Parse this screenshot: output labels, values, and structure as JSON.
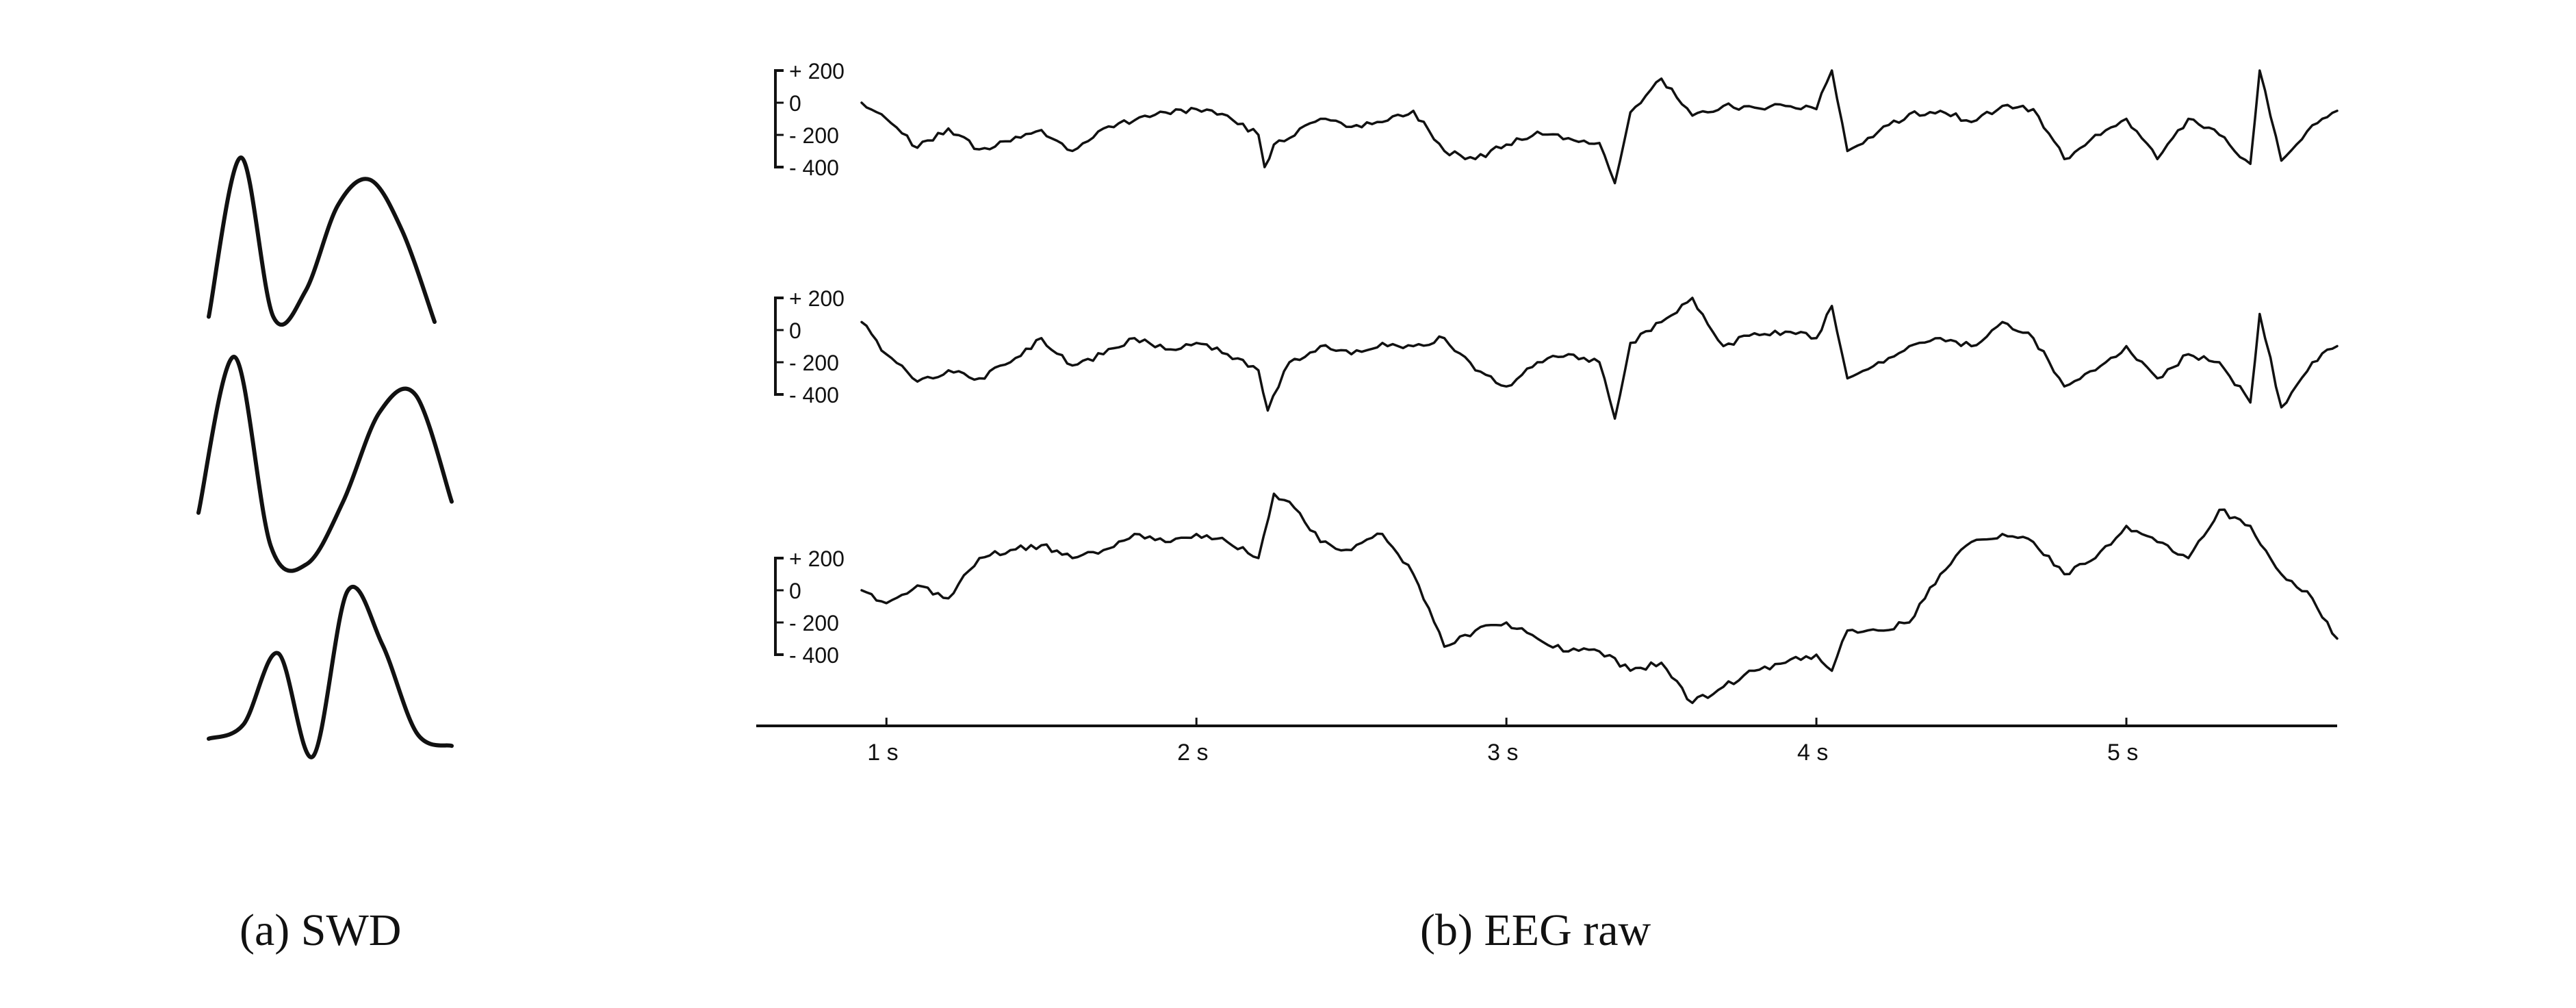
{
  "chart_data": [
    {
      "type": "line",
      "caption": "(a)  SWD",
      "series": [
        {
          "y": [
            0.05,
            0.98,
            0.05,
            0.2,
            0.7,
            0.85,
            0.55,
            0.02
          ]
        },
        {
          "y": [
            0.25,
            0.95,
            0.1,
            0.02,
            0.3,
            0.7,
            0.78,
            0.3
          ]
        },
        {
          "y": [
            0.12,
            0.2,
            0.6,
            0.02,
            0.95,
            0.65,
            0.15,
            0.08
          ]
        }
      ]
    },
    {
      "type": "line",
      "caption": "(b)  EEG raw",
      "xlim": [
        0.58,
        5.68
      ],
      "ylim": [
        -400,
        200
      ],
      "x_ticks": [
        1,
        2,
        3,
        4,
        5
      ],
      "x_tick_labels": [
        "1 s",
        "2 s",
        "3 s",
        "4 s",
        "5 s"
      ],
      "y_tick_labels": [
        "+ 200",
        "0",
        "- 200",
        "- 400"
      ],
      "y_ticks": [
        200,
        0,
        -200,
        -400
      ],
      "series": [
        {
          "x": [
            0.92,
            1.0,
            1.1,
            1.2,
            1.3,
            1.4,
            1.5,
            1.6,
            1.7,
            1.8,
            1.9,
            2.0,
            2.1,
            2.2,
            2.22,
            2.25,
            2.3,
            2.4,
            2.5,
            2.6,
            2.7,
            2.8,
            2.9,
            3.0,
            3.1,
            3.2,
            3.3,
            3.35,
            3.4,
            3.5,
            3.6,
            3.7,
            3.8,
            3.9,
            4.0,
            4.05,
            4.1,
            4.2,
            4.3,
            4.4,
            4.5,
            4.6,
            4.7,
            4.8,
            4.9,
            5.0,
            5.1,
            5.2,
            5.3,
            5.4,
            5.43,
            5.5,
            5.6,
            5.68
          ],
          "y": [
            0,
            -100,
            -280,
            -160,
            -290,
            -240,
            -170,
            -300,
            -160,
            -110,
            -60,
            -40,
            -80,
            -200,
            -400,
            -260,
            -220,
            -100,
            -150,
            -120,
            -50,
            -300,
            -350,
            -260,
            -180,
            -220,
            -250,
            -500,
            -60,
            150,
            -80,
            -20,
            -30,
            -20,
            -40,
            200,
            -300,
            -180,
            -70,
            -50,
            -120,
            -20,
            -40,
            -350,
            -200,
            -100,
            -350,
            -100,
            -200,
            -380,
            200,
            -360,
            -140,
            -50
          ]
        },
        {
          "x": [
            0.92,
            1.0,
            1.1,
            1.2,
            1.3,
            1.4,
            1.5,
            1.6,
            1.7,
            1.8,
            1.9,
            2.0,
            2.1,
            2.2,
            2.23,
            2.3,
            2.4,
            2.5,
            2.6,
            2.7,
            2.8,
            2.9,
            3.0,
            3.1,
            3.2,
            3.3,
            3.35,
            3.4,
            3.5,
            3.6,
            3.7,
            3.8,
            3.9,
            4.0,
            4.05,
            4.1,
            4.2,
            4.3,
            4.4,
            4.5,
            4.6,
            4.7,
            4.8,
            4.9,
            5.0,
            5.1,
            5.2,
            5.3,
            5.4,
            5.43,
            5.5,
            5.6,
            5.68
          ],
          "y": [
            50,
            -150,
            -320,
            -250,
            -300,
            -200,
            -50,
            -220,
            -150,
            -50,
            -120,
            -80,
            -150,
            -250,
            -500,
            -200,
            -100,
            -150,
            -80,
            -100,
            -50,
            -250,
            -350,
            -200,
            -150,
            -200,
            -550,
            -80,
            50,
            200,
            -100,
            -20,
            -10,
            -50,
            150,
            -300,
            -200,
            -100,
            -50,
            -100,
            50,
            -50,
            -350,
            -250,
            -100,
            -300,
            -150,
            -200,
            -450,
            100,
            -480,
            -200,
            -100
          ]
        },
        {
          "x": [
            0.92,
            1.0,
            1.1,
            1.2,
            1.3,
            1.4,
            1.5,
            1.6,
            1.7,
            1.8,
            1.9,
            2.0,
            2.1,
            2.2,
            2.25,
            2.3,
            2.4,
            2.5,
            2.6,
            2.7,
            2.8,
            2.9,
            3.0,
            3.1,
            3.2,
            3.3,
            3.4,
            3.5,
            3.6,
            3.7,
            3.8,
            3.9,
            4.0,
            4.05,
            4.1,
            4.2,
            4.3,
            4.4,
            4.5,
            4.6,
            4.7,
            4.8,
            4.9,
            5.0,
            5.1,
            5.2,
            5.3,
            5.4,
            5.5,
            5.6,
            5.68
          ],
          "y": [
            0,
            -80,
            30,
            -50,
            200,
            250,
            280,
            200,
            250,
            350,
            300,
            350,
            300,
            200,
            600,
            550,
            300,
            250,
            350,
            100,
            -350,
            -250,
            -200,
            -300,
            -380,
            -380,
            -500,
            -450,
            -700,
            -600,
            -500,
            -450,
            -400,
            -500,
            -250,
            -250,
            -200,
            100,
            300,
            350,
            300,
            100,
            200,
            400,
            300,
            200,
            500,
            400,
            100,
            -50,
            -300
          ]
        }
      ]
    }
  ]
}
